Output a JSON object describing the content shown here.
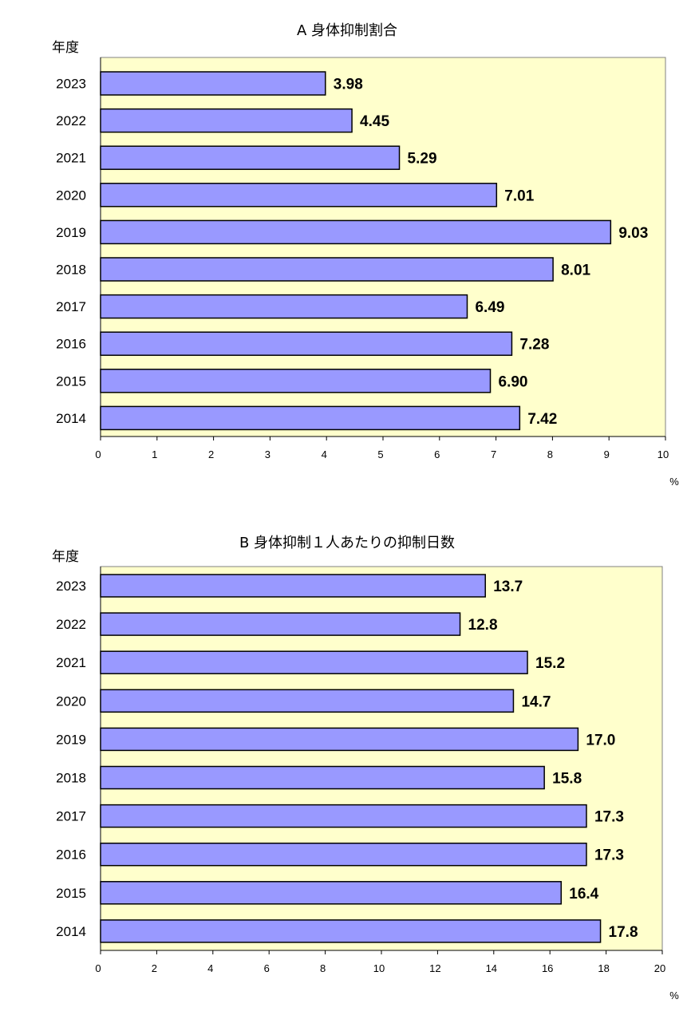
{
  "chart_data": [
    {
      "type": "bar",
      "orientation": "horizontal",
      "title": "A 身体抑制割合",
      "ylabel": "年度",
      "xlabel": "%",
      "categories": [
        "2023",
        "2022",
        "2021",
        "2020",
        "2019",
        "2018",
        "2017",
        "2016",
        "2015",
        "2014"
      ],
      "values": [
        3.98,
        4.45,
        5.29,
        7.01,
        9.03,
        8.01,
        6.49,
        7.28,
        6.9,
        7.42
      ],
      "value_labels": [
        "3.98",
        "4.45",
        "5.29",
        "7.01",
        "9.03",
        "8.01",
        "6.49",
        "7.28",
        "6.90",
        "7.42"
      ],
      "xlim": [
        0,
        10
      ],
      "xticks": [
        "0",
        "1",
        "2",
        "3",
        "4",
        "5",
        "6",
        "7",
        "8",
        "9",
        "10"
      ],
      "grid": false,
      "legend": "none",
      "colors": {
        "bar": "#9999ff",
        "plot_bg": "#ffffcc",
        "border": "#000000"
      }
    },
    {
      "type": "bar",
      "orientation": "horizontal",
      "title": "B 身体抑制１人あたりの抑制日数",
      "ylabel": "年度",
      "xlabel": "%",
      "categories": [
        "2023",
        "2022",
        "2021",
        "2020",
        "2019",
        "2018",
        "2017",
        "2016",
        "2015",
        "2014"
      ],
      "values": [
        13.7,
        12.8,
        15.2,
        14.7,
        17.0,
        15.8,
        17.3,
        17.3,
        16.4,
        17.8
      ],
      "value_labels": [
        "13.7",
        "12.8",
        "15.2",
        "14.7",
        "17.0",
        "15.8",
        "17.3",
        "17.3",
        "16.4",
        "17.8"
      ],
      "xlim": [
        0,
        20
      ],
      "xticks": [
        "0",
        "2",
        "4",
        "6",
        "8",
        "10",
        "12",
        "14",
        "16",
        "18",
        "20"
      ],
      "grid": false,
      "legend": "none",
      "colors": {
        "bar": "#9999ff",
        "plot_bg": "#ffffcc",
        "border": "#000000"
      }
    }
  ]
}
